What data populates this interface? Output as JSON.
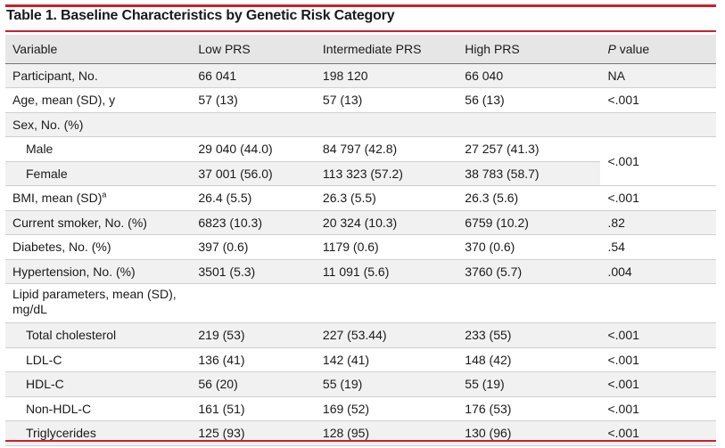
{
  "title": "Table 1. Baseline Characteristics by Genetic Risk Category",
  "headers": {
    "variable": "Variable",
    "low": "Low PRS",
    "intermediate": "Intermediate PRS",
    "high": "High PRS",
    "p_italic": "P",
    "p_rest": " value"
  },
  "rows": {
    "participant": {
      "label": "Participant, No.",
      "low": "66 041",
      "intermediate": "198 120",
      "high": "66 040",
      "p": "NA"
    },
    "age": {
      "label": "Age, mean (SD), y",
      "low": "57 (13)",
      "intermediate": "57 (13)",
      "high": "56 (13)",
      "p": "<.001"
    },
    "sex": {
      "label": "Sex, No. (%)"
    },
    "male": {
      "label": "Male",
      "low": "29 040 (44.0)",
      "intermediate": "84 797 (42.8)",
      "high": "27 257 (41.3)"
    },
    "female": {
      "label": "Female",
      "low": "37 001 (56.0)",
      "intermediate": "113 323 (57.2)",
      "high": "38 783 (58.7)"
    },
    "sex_p": "<.001",
    "bmi": {
      "label": "BMI, mean (SD)",
      "sup": "a",
      "low": "26.4 (5.5)",
      "intermediate": "26.3 (5.5)",
      "high": "26.3 (5.6)",
      "p": "<.001"
    },
    "smoker": {
      "label": "Current smoker, No. (%)",
      "low": "6823 (10.3)",
      "intermediate": "20 324 (10.3)",
      "high": "6759 (10.2)",
      "p": ".82"
    },
    "diabetes": {
      "label": "Diabetes, No. (%)",
      "low": "397 (0.6)",
      "intermediate": "1179 (0.6)",
      "high": "370 (0.6)",
      "p": ".54"
    },
    "hypertension": {
      "label": "Hypertension, No. (%)",
      "low": "3501 (5.3)",
      "intermediate": "11 091 (5.6)",
      "high": "3760 (5.7)",
      "p": ".004"
    },
    "lipid": {
      "label": "Lipid parameters, mean (SD), mg/dL"
    },
    "tc": {
      "label": "Total cholesterol",
      "low": "219 (53)",
      "intermediate": "227 (53.44)",
      "high": "233 (55)",
      "p": "<.001"
    },
    "ldl": {
      "label": "LDL-C",
      "low": "136 (41)",
      "intermediate": "142 (41)",
      "high": "148 (42)",
      "p": "<.001"
    },
    "hdl": {
      "label": "HDL-C",
      "low": "56 (20)",
      "intermediate": "55 (19)",
      "high": "55 (19)",
      "p": "<.001"
    },
    "nonhdl": {
      "label": "Non-HDL-C",
      "low": "161 (51)",
      "intermediate": "169 (52)",
      "high": "176 (53)",
      "p": "<.001"
    },
    "tg": {
      "label": "Triglycerides",
      "low": "125 (93)",
      "intermediate": "128 (95)",
      "high": "130 (96)",
      "p": "<.001"
    }
  },
  "colors": {
    "accent_red": "#c8202f",
    "header_bg": "#e6e6e6",
    "stripe_bg": "#f1f1f1"
  }
}
